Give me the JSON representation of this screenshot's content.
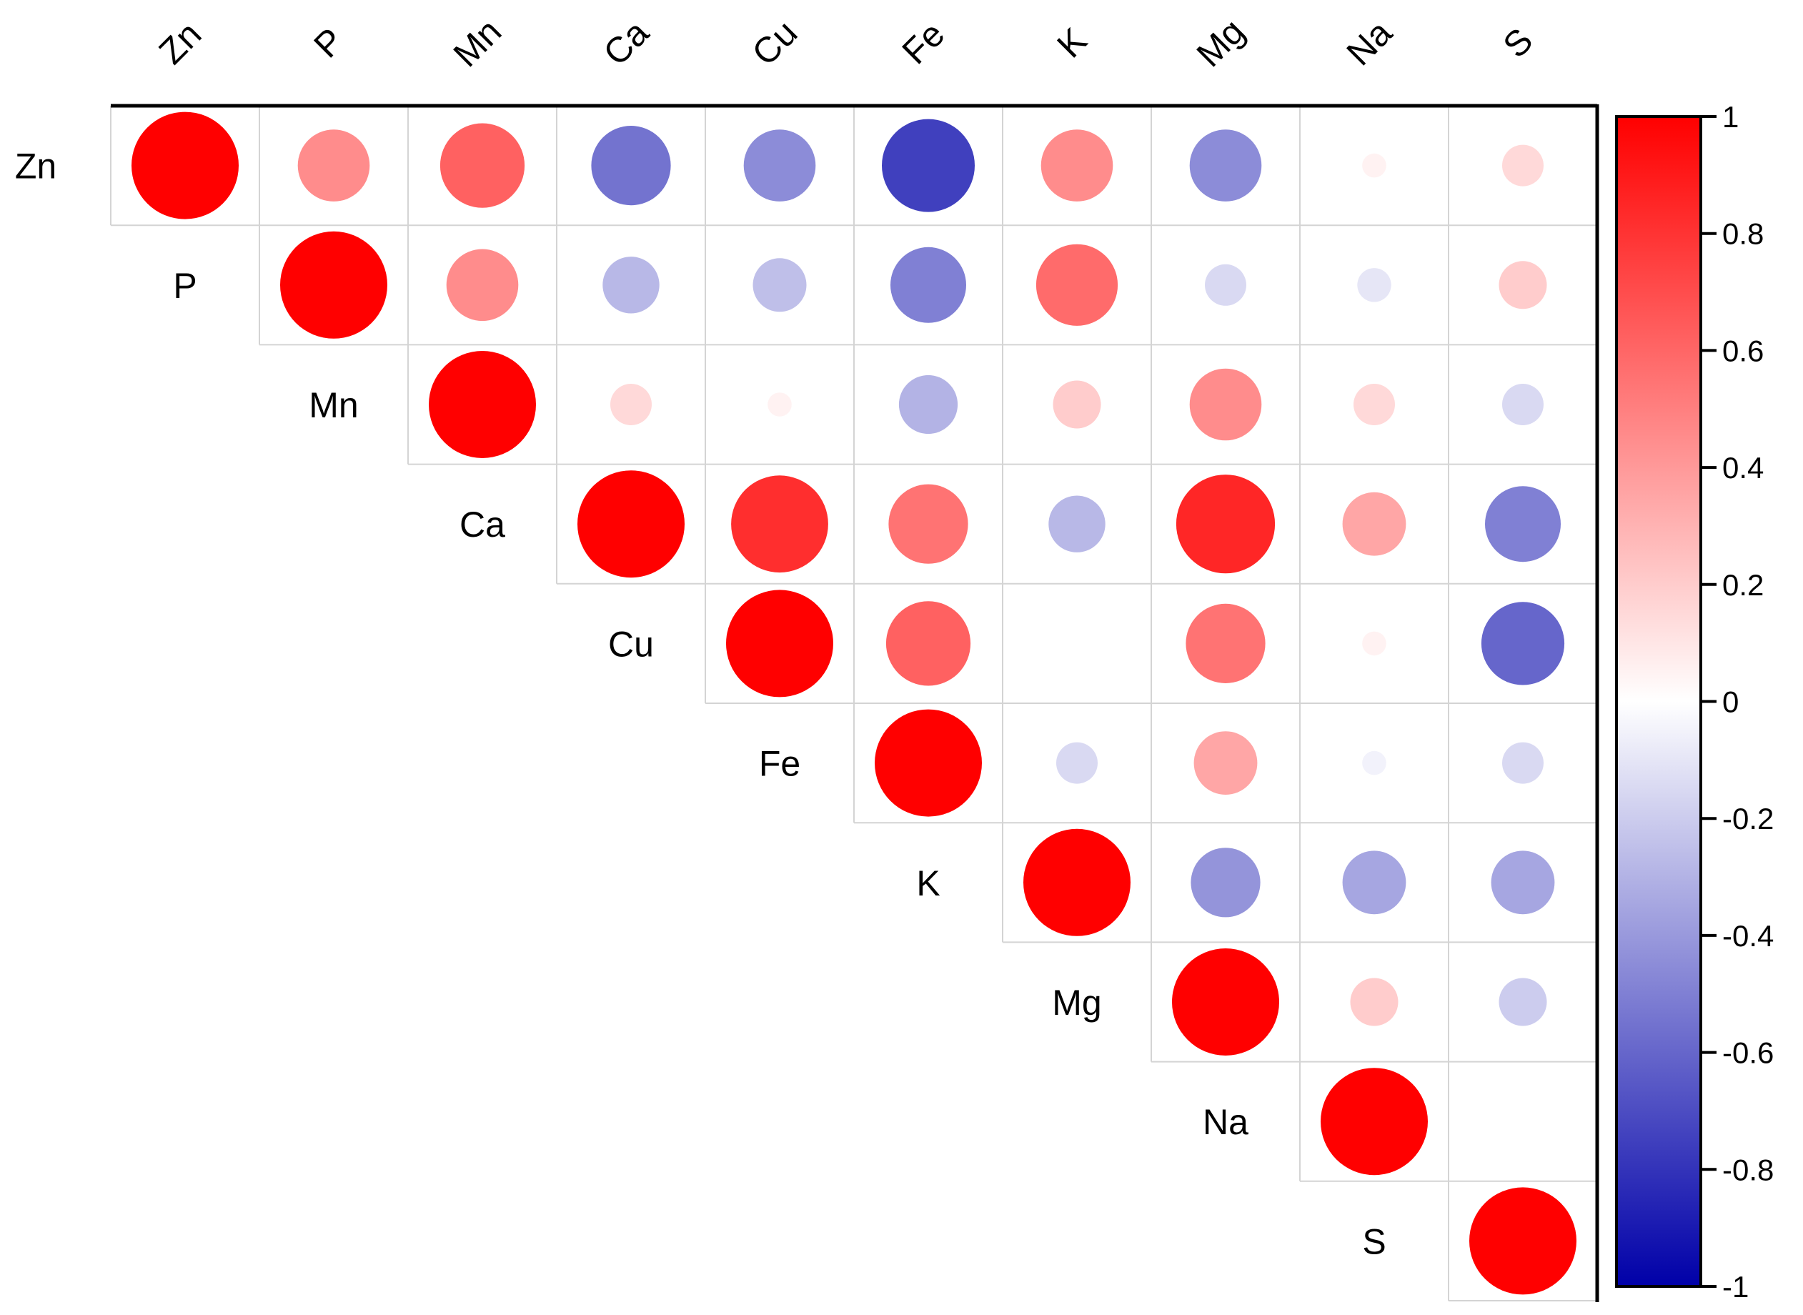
{
  "chart_data": {
    "type": "heatmap",
    "subtype": "correlation-circle-upper-triangle",
    "title": "",
    "xlabel": "",
    "ylabel": "",
    "variables": [
      "Zn",
      "P",
      "Mn",
      "Ca",
      "Cu",
      "Fe",
      "K",
      "Mg",
      "Na",
      "S"
    ],
    "matrix": [
      [
        1.0,
        0.45,
        0.62,
        -0.55,
        -0.45,
        -0.75,
        0.45,
        -0.45,
        0.05,
        0.15
      ],
      [
        null,
        1.0,
        0.45,
        -0.28,
        -0.25,
        -0.5,
        0.58,
        -0.15,
        -0.1,
        0.2
      ],
      [
        null,
        null,
        1.0,
        0.15,
        0.05,
        -0.3,
        0.2,
        0.45,
        0.15,
        -0.15
      ],
      [
        null,
        null,
        null,
        1.0,
        0.82,
        0.55,
        -0.28,
        0.85,
        0.35,
        -0.5
      ],
      [
        null,
        null,
        null,
        null,
        1.0,
        0.62,
        0.0,
        0.55,
        0.05,
        -0.6
      ],
      [
        null,
        null,
        null,
        null,
        null,
        1.0,
        -0.15,
        0.35,
        -0.05,
        -0.15
      ],
      [
        null,
        null,
        null,
        null,
        null,
        null,
        1.0,
        -0.42,
        -0.35,
        -0.35
      ],
      [
        null,
        null,
        null,
        null,
        null,
        null,
        null,
        1.0,
        0.2,
        -0.2
      ],
      [
        null,
        null,
        null,
        null,
        null,
        null,
        null,
        null,
        1.0,
        0.0
      ],
      [
        null,
        null,
        null,
        null,
        null,
        null,
        null,
        null,
        null,
        1.0
      ]
    ],
    "colorbar": {
      "range": [
        -1,
        1
      ],
      "ticks": [
        "1",
        "0.8",
        "0.6",
        "0.4",
        "0.2",
        "0",
        "-0.2",
        "-0.4",
        "-0.6",
        "-0.8",
        "-1"
      ],
      "tick_values": [
        1,
        0.8,
        0.6,
        0.4,
        0.2,
        0,
        -0.2,
        -0.4,
        -0.6,
        -0.8,
        -1
      ],
      "colors": {
        "negative": "#0000a8",
        "zero": "#ffffff",
        "positive": "#ff0000"
      },
      "position": "right"
    },
    "grid": true,
    "legend": "none"
  }
}
